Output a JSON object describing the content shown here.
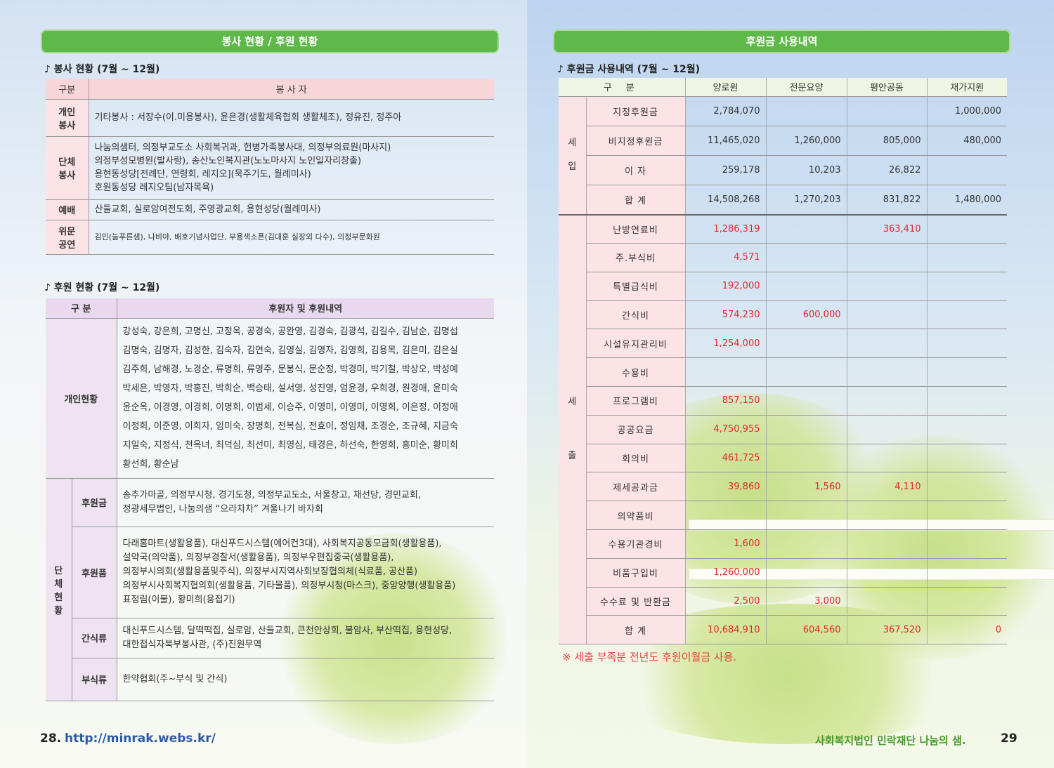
{
  "left_page": {
    "banner": "봉사 현황 / 후원 현황",
    "volunteer": {
      "heading": "♪ 봉사 현황 (7월 ~ 12월)",
      "header": [
        "구분",
        "봉 사 자"
      ],
      "rows": [
        {
          "label": [
            "개인",
            "봉사"
          ],
          "lines": [
            "기타봉사 : 서장수(이.미용봉사), 윤은경(생활체육협회 생활체조), 정유진, 정주아"
          ]
        },
        {
          "label": [
            "단체",
            "봉사"
          ],
          "lines": [
            "나눔의샘터, 의정부교도소 사회복귀과, 헌병가족봉사대, 의정부의료원(마사지)",
            "의정부성모병원(발사랑), 송산노인복지관(노노마사지 노인일자리창출)",
            "용현동성당[전례단, 연령회, 레지오](묵주기도, 월례미사)",
            "호원동성당 레지오팀(남자목욕)"
          ]
        },
        {
          "label": [
            "예배"
          ],
          "lines": [
            "산들교회, 실로암여전도회, 주영광교회, 용현성당(월례미사)"
          ]
        },
        {
          "label": [
            "위문",
            "공연"
          ],
          "lines": [
            "김민(늘푸른샘), 나비야, 배호기념사업단, 부용색소폰(김대훈 실장외 다수), 의정부문화원"
          ]
        }
      ]
    },
    "sponsors": {
      "heading": "♪ 후원 현황 (7월 ~ 12월)",
      "header": [
        "구 분",
        "후원자 및 후원내역"
      ],
      "individual": {
        "label": "개인현황",
        "lines": [
          "강성숙, 강은희, 고명신, 고정옥, 공경숙, 공완영, 김경숙, 김광석, 김길수, 김남순, 김명섭",
          "김명숙, 김명자, 김성한, 김숙자, 김연숙, 김영실, 김영자, 김영희, 김용목, 김은미, 김은실",
          "김주희, 남해경, 노경순, 류명희, 류영주, 문봉식, 문순정, 박경미, 박기철, 박상오, 박성예",
          "박세은, 박영자, 박홍진, 박희순, 백승태, 설서영, 성진영, 엄윤경, 우희경, 원경애, 윤미숙",
          "윤순옥, 이경영, 이경희, 이명희, 이범세, 이승주, 이영미, 이영미, 이영희, 이은정, 이정애",
          "이정희, 이준영, 이희자, 임미숙, 장명희, 전복심, 전효이, 정임채, 조경순, 조규혜, 지금숙",
          "지일숙, 지정식, 천옥녀, 최덕심, 최선미, 최영심, 태경은, 하선숙, 한영희, 홍미순, 황미희",
          "황선희, 황순남"
        ]
      },
      "group": {
        "label": [
          "단",
          "체",
          "현",
          "황"
        ],
        "rows": [
          {
            "label": "후원금",
            "lines": [
              "송추가마골, 의정부시청, 경기도청, 의정부교도소, 서울창고, 채선당, 경민교회,",
              "정광세무법인, 나눔의샘 “으라차차” 겨울나기 바자회"
            ]
          },
          {
            "label": "후원품",
            "lines": [
              "다래홈마트(생활용품), 대신푸드시스템(에어컨3대), 사회복지공동모금회(생활용품),",
              "설약국(의약품), 의정부경찰서(생활용품), 의정부우편집중국(생활용품),",
              "의정부시의회(생활용품및주식), 의정부시지역사회보장협의체(식료품, 공산품)",
              "의정부시사회복지협의회(생활용품, 기타물품), 의정부시청(마스크), 중앙양행(생활용품)",
              "표정림(이불), 황미희(용접기)"
            ]
          },
          {
            "label": "간식류",
            "lines": [
              "대신푸드시스템, 달떡떡집, 실로암, 산들교회, 큰천안상회, 불암사, 부산떡집, 용현성당,",
              "대한접식자북부봉사관, (주)진원무역"
            ]
          },
          {
            "label": "부식류",
            "lines": [
              "한약협회(주~부식 및 간식)"
            ]
          }
        ]
      }
    },
    "footer": {
      "page": "28.",
      "url": "http://minrak.webs.kr/"
    }
  },
  "right_page": {
    "banner": "후원금 사용내역",
    "heading": "♪ 후원금 사용내역 (7월 ~ 12월)",
    "table": {
      "header": [
        "구 분",
        "양로원",
        "전문요양",
        "평안공동",
        "재가지원"
      ],
      "groups": [
        {
          "label": [
            "세",
            "입"
          ],
          "rows": [
            {
              "label": "지정후원금",
              "values": [
                "2,784,070",
                null,
                null,
                "1,000,000"
              ]
            },
            {
              "label": "비지정후원금",
              "values": [
                "11,465,020",
                "1,260,000",
                "805,000",
                "480,000"
              ]
            },
            {
              "label": "이 자",
              "values": [
                "259,178",
                "10,203",
                "26,822",
                null
              ]
            },
            {
              "label": "합 계",
              "values": [
                "14,508,268",
                "1,270,203",
                "831,822",
                "1,480,000"
              ]
            }
          ]
        },
        {
          "label": [
            "세",
            "출"
          ],
          "rows": [
            {
              "label": "난방연료비",
              "values": [
                "1,286,319",
                null,
                "363,410",
                null
              ]
            },
            {
              "label": "주.부식비",
              "values": [
                "4,571",
                null,
                null,
                null
              ]
            },
            {
              "label": "특별급식비",
              "values": [
                "192,000",
                null,
                null,
                null
              ]
            },
            {
              "label": "간식비",
              "values": [
                "574,230",
                "600,000",
                null,
                null
              ]
            },
            {
              "label": "시설유지관리비",
              "values": [
                "1,254,000",
                null,
                null,
                null
              ]
            },
            {
              "label": "수용비",
              "values": [
                null,
                null,
                null,
                null
              ]
            },
            {
              "label": "프로그램비",
              "values": [
                "857,150",
                null,
                null,
                null
              ]
            },
            {
              "label": "공공요금",
              "values": [
                "4,750,955",
                null,
                null,
                null
              ]
            },
            {
              "label": "회의비",
              "values": [
                "461,725",
                null,
                null,
                null
              ]
            },
            {
              "label": "제세공과금",
              "values": [
                "39,860",
                "1,560",
                "4,110",
                null
              ]
            },
            {
              "label": "의약품비",
              "values": [
                null,
                null,
                null,
                null
              ]
            },
            {
              "label": "수용기관경비",
              "values": [
                "1,600",
                null,
                null,
                null
              ]
            },
            {
              "label": "비품구입비",
              "values": [
                "1,260,000",
                null,
                null,
                null
              ]
            },
            {
              "label": "수수료 및 반환금",
              "values": [
                "2,500",
                "3,000",
                null,
                null
              ]
            },
            {
              "label": "합 계",
              "values": [
                "10,684,910",
                "604,560",
                "367,520",
                "0"
              ]
            }
          ]
        }
      ]
    },
    "note": "※ 세출 부족분 전년도 후원이월금 사용.",
    "footer": {
      "publisher": "사회복지법인 민락재단 나눔의 샘.",
      "page": "29"
    }
  }
}
